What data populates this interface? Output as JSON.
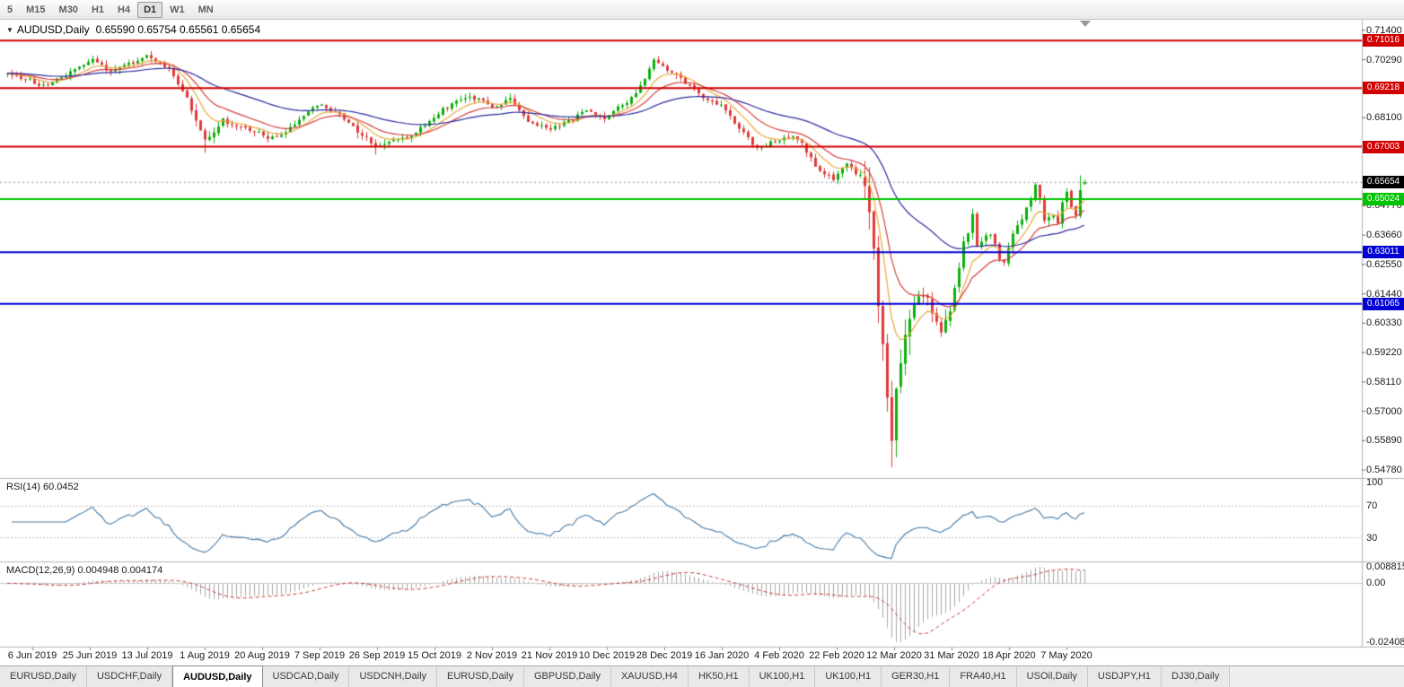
{
  "toolbar": {
    "timeframes": [
      "5",
      "M15",
      "M30",
      "H1",
      "H4",
      "D1",
      "W1",
      "MN"
    ],
    "active_timeframe": "D1"
  },
  "icons": {
    "title_dropdown": "▼"
  },
  "chart": {
    "symbol": "AUDUSD,Daily",
    "ohlc_text": "0.65590 0.65754 0.65561 0.65654",
    "current_price": "0.65654",
    "price_ticks": [
      "0.71400",
      "0.70290",
      "0.68100",
      "0.64770",
      "0.63660",
      "0.62550",
      "0.61440",
      "0.60330",
      "0.59220",
      "0.58110",
      "0.57000",
      "0.55890",
      "0.54780"
    ],
    "levels": [
      {
        "price": 0.71016,
        "label": "0.71016",
        "color": "#d10000",
        "role": "resistance"
      },
      {
        "price": 0.69218,
        "label": "0.69218",
        "color": "#d10000",
        "role": "resistance"
      },
      {
        "price": 0.67003,
        "label": "0.67003",
        "color": "#d10000",
        "role": "resistance"
      },
      {
        "price": 0.65024,
        "label": "0.65024",
        "color": "#00c400",
        "role": "support"
      },
      {
        "price": 0.63011,
        "label": "0.63011",
        "color": "#0000d2",
        "role": "support"
      },
      {
        "price": 0.61065,
        "label": "0.61065",
        "color": "#0000d2",
        "role": "support"
      }
    ],
    "dates": [
      "6 Jun 2019",
      "25 Jun 2019",
      "13 Jul 2019",
      "1 Aug 2019",
      "20 Aug 2019",
      "7 Sep 2019",
      "26 Sep 2019",
      "15 Oct 2019",
      "2 Nov 2019",
      "21 Nov 2019",
      "10 Dec 2019",
      "28 Dec 2019",
      "16 Jan 2020",
      "4 Feb 2020",
      "22 Feb 2020",
      "12 Mar 2020",
      "31 Mar 2020",
      "18 Apr 2020",
      "7 May 2020"
    ]
  },
  "rsi": {
    "label": "RSI(14) 60.0452",
    "value": "60.0452",
    "ticks": [
      "100",
      "70",
      "30"
    ],
    "levels": [
      70,
      30
    ]
  },
  "macd": {
    "label": "MACD(12,26,9) 0.004948 0.004174",
    "main_value": "0.004948",
    "signal_value": "0.004174",
    "axis_max": "0.008815",
    "axis_zero": "0.00",
    "axis_min": "-0.024082"
  },
  "tabs": {
    "items": [
      "EURUSD,Daily",
      "USDCHF,Daily",
      "AUDUSD,Daily",
      "USDCAD,Daily",
      "USDCNH,Daily",
      "EURUSD,Daily",
      "GBPUSD,Daily",
      "XAUUSD,H4",
      "HK50,H1",
      "UK100,H1",
      "UK100,H1",
      "GER30,H1",
      "FRA40,H1",
      "USOil,Daily",
      "USDJPY,H1",
      "DJ30,Daily"
    ],
    "active_index": 2
  },
  "chart_data": {
    "type": "candlestick",
    "symbol": "AUDUSD",
    "timeframe": "Daily",
    "visible_date_range": [
      "6 Jun 2019",
      "19 May 2020"
    ],
    "days": 240,
    "price_range_visible": [
      0.5448,
      0.718
    ],
    "price_anchors": [
      [
        0,
        0.6975
      ],
      [
        4,
        0.6958
      ],
      [
        8,
        0.693
      ],
      [
        12,
        0.6962
      ],
      [
        16,
        0.7
      ],
      [
        19,
        0.7028
      ],
      [
        23,
        0.6988
      ],
      [
        27,
        0.7012
      ],
      [
        31,
        0.7042
      ],
      [
        34,
        0.7015
      ],
      [
        36,
        0.6992
      ],
      [
        38,
        0.6942
      ],
      [
        40,
        0.6892
      ],
      [
        42,
        0.68
      ],
      [
        44,
        0.6732
      ],
      [
        46,
        0.676
      ],
      [
        48,
        0.6798
      ],
      [
        51,
        0.6782
      ],
      [
        53,
        0.6772
      ],
      [
        56,
        0.6752
      ],
      [
        58,
        0.6732
      ],
      [
        61,
        0.6748
      ],
      [
        63,
        0.6775
      ],
      [
        66,
        0.682
      ],
      [
        68,
        0.6845
      ],
      [
        70,
        0.6862
      ],
      [
        72,
        0.684
      ],
      [
        74,
        0.6818
      ],
      [
        76,
        0.6788
      ],
      [
        78,
        0.6762
      ],
      [
        80,
        0.673
      ],
      [
        82,
        0.6702
      ],
      [
        84,
        0.6706
      ],
      [
        86,
        0.6722
      ],
      [
        88,
        0.673
      ],
      [
        91,
        0.6756
      ],
      [
        94,
        0.6792
      ],
      [
        97,
        0.684
      ],
      [
        100,
        0.6872
      ],
      [
        103,
        0.689
      ],
      [
        106,
        0.6872
      ],
      [
        108,
        0.6852
      ],
      [
        110,
        0.6862
      ],
      [
        112,
        0.688
      ],
      [
        114,
        0.684
      ],
      [
        116,
        0.6795
      ],
      [
        118,
        0.6782
      ],
      [
        121,
        0.6768
      ],
      [
        124,
        0.6788
      ],
      [
        126,
        0.6806
      ],
      [
        129,
        0.684
      ],
      [
        131,
        0.682
      ],
      [
        133,
        0.6806
      ],
      [
        136,
        0.6852
      ],
      [
        138,
        0.6872
      ],
      [
        140,
        0.6898
      ],
      [
        142,
        0.6952
      ],
      [
        144,
        0.703
      ],
      [
        146,
        0.7005
      ],
      [
        148,
        0.6982
      ],
      [
        151,
        0.6942
      ],
      [
        154,
        0.69
      ],
      [
        157,
        0.6872
      ],
      [
        159,
        0.6855
      ],
      [
        161,
        0.6812
      ],
      [
        163,
        0.677
      ],
      [
        165,
        0.673
      ],
      [
        167,
        0.6695
      ],
      [
        169,
        0.6708
      ],
      [
        171,
        0.6722
      ],
      [
        173,
        0.6732
      ],
      [
        175,
        0.674
      ],
      [
        177,
        0.6712
      ],
      [
        180,
        0.6625
      ],
      [
        182,
        0.66
      ],
      [
        184,
        0.6578
      ],
      [
        186,
        0.6622
      ],
      [
        187,
        0.6642
      ],
      [
        189,
        0.66
      ],
      [
        190,
        0.6585
      ],
      [
        191,
        0.654
      ],
      [
        192,
        0.6452
      ],
      [
        193,
        0.631
      ],
      [
        194,
        0.6125
      ],
      [
        195,
        0.5935
      ],
      [
        196,
        0.5762
      ],
      [
        197,
        0.556
      ],
      [
        198,
        0.5812
      ],
      [
        199,
        0.5878
      ],
      [
        200,
        0.5968
      ],
      [
        201,
        0.6048
      ],
      [
        202,
        0.6102
      ],
      [
        203,
        0.6128
      ],
      [
        204,
        0.6135
      ],
      [
        205,
        0.6128
      ],
      [
        206,
        0.6052
      ],
      [
        207,
        0.603
      ],
      [
        208,
        0.5985
      ],
      [
        209,
        0.6042
      ],
      [
        210,
        0.609
      ],
      [
        211,
        0.6168
      ],
      [
        212,
        0.6232
      ],
      [
        213,
        0.6338
      ],
      [
        214,
        0.6382
      ],
      [
        215,
        0.6438
      ],
      [
        216,
        0.6322
      ],
      [
        217,
        0.6332
      ],
      [
        218,
        0.6358
      ],
      [
        219,
        0.6368
      ],
      [
        220,
        0.6338
      ],
      [
        221,
        0.6272
      ],
      [
        222,
        0.6268
      ],
      [
        223,
        0.6322
      ],
      [
        224,
        0.6372
      ],
      [
        225,
        0.6398
      ],
      [
        227,
        0.6468
      ],
      [
        228,
        0.6492
      ],
      [
        229,
        0.6552
      ],
      [
        230,
        0.6518
      ],
      [
        231,
        0.6418
      ],
      [
        232,
        0.6432
      ],
      [
        233,
        0.6442
      ],
      [
        234,
        0.6402
      ],
      [
        235,
        0.6492
      ],
      [
        236,
        0.6532
      ],
      [
        237,
        0.6482
      ],
      [
        238,
        0.6448
      ],
      [
        239,
        0.6528
      ],
      [
        240,
        0.6565
      ]
    ],
    "volatility": {
      "base": 0.0026,
      "windows": [
        [
          40,
          48,
          0.004
        ],
        [
          78,
          86,
          0.0034
        ],
        [
          190,
          190,
          0.006
        ],
        [
          191,
          201,
          0.011
        ],
        [
          202,
          212,
          0.0065
        ],
        [
          213,
          240,
          0.004
        ]
      ]
    },
    "spikes": [
      {
        "day": 44,
        "low": 0.6677
      },
      {
        "day": 82,
        "low": 0.6671
      },
      {
        "day": 144,
        "high": 0.7036
      },
      {
        "day": 197,
        "low": 0.5489
      },
      {
        "day": 239,
        "high": 0.6592
      }
    ],
    "last_candle": [
      0.6559,
      0.65754,
      0.65561,
      0.65654
    ],
    "moving_averages": [
      {
        "name": "ma-fast",
        "period": 8,
        "color": "#e8a83c"
      },
      {
        "name": "ma-mid",
        "period": 16,
        "color": "#d64040"
      },
      {
        "name": "ma-slow",
        "period": 45,
        "color": "#2c2ca0"
      }
    ],
    "rsi_period": 14,
    "macd_periods": [
      12,
      26,
      9
    ],
    "colors": {
      "up": "#0caf0c",
      "down": "#e03a3a",
      "rsi_line": "#4679a4",
      "macd_hist": "#a8a8a8",
      "macd_signal": "#c84040",
      "background": "#ffffff"
    }
  }
}
